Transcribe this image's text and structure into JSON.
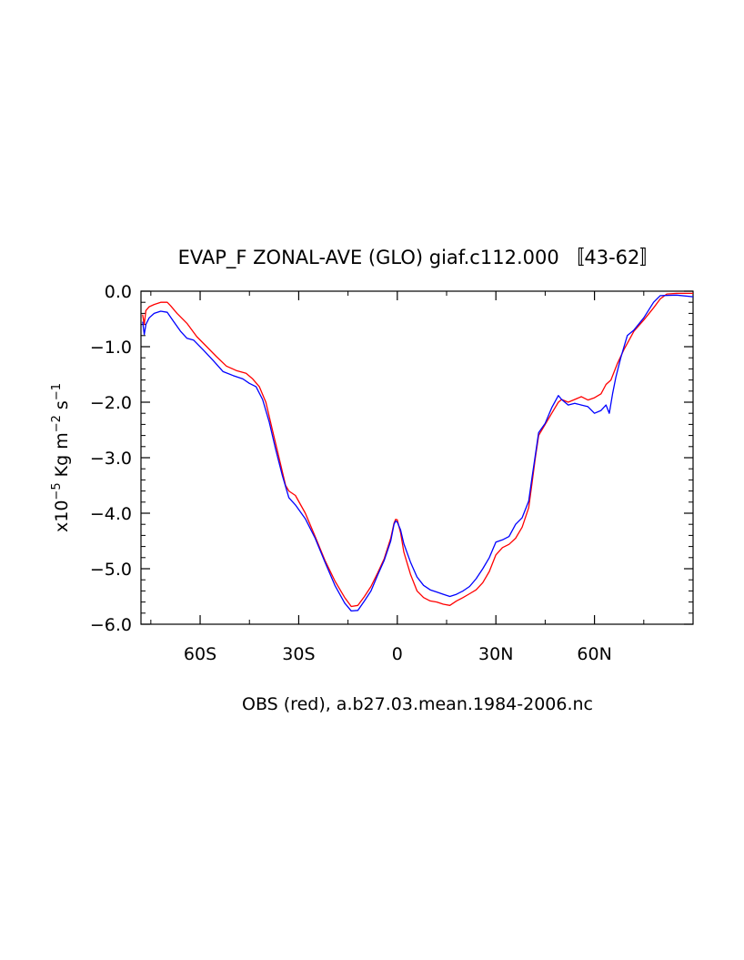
{
  "chart_data": {
    "type": "line",
    "title": "EVAP_F ZONAL-AVE (GLO) giaf.c112.000 〚43-62〛",
    "footer": "OBS (red), a.b27.03.mean.1984-2006.nc",
    "ylabel": {
      "prefix": "x10",
      "exp1": "−5",
      "mid": " Kg m",
      "exp2": "−2",
      "mid2": " s",
      "exp3": "−1"
    },
    "xlim": [
      -78,
      90
    ],
    "ylim": [
      -6.0,
      0.0
    ],
    "grid": false,
    "x_ticks": [
      {
        "value": -60,
        "label": "60S"
      },
      {
        "value": -30,
        "label": "30S"
      },
      {
        "value": 0,
        "label": "0"
      },
      {
        "value": 30,
        "label": "30N"
      },
      {
        "value": 60,
        "label": "60N"
      }
    ],
    "y_ticks": [
      {
        "value": 0.0,
        "label": "0.0"
      },
      {
        "value": -1.0,
        "label": "−1.0"
      },
      {
        "value": -2.0,
        "label": "−2.0"
      },
      {
        "value": -3.0,
        "label": "−3.0"
      },
      {
        "value": -4.0,
        "label": "−4.0"
      },
      {
        "value": -5.0,
        "label": "−5.0"
      },
      {
        "value": -6.0,
        "label": "−6.0"
      }
    ],
    "series": [
      {
        "color": "#ff0000",
        "points": [
          [
            -77.5,
            -0.42
          ],
          [
            -77,
            -0.6
          ],
          [
            -76.5,
            -0.35
          ],
          [
            -75.5,
            -0.28
          ],
          [
            -74,
            -0.24
          ],
          [
            -72,
            -0.2
          ],
          [
            -70,
            -0.2
          ],
          [
            -69,
            -0.26
          ],
          [
            -67,
            -0.4
          ],
          [
            -64,
            -0.58
          ],
          [
            -61,
            -0.82
          ],
          [
            -58,
            -1.0
          ],
          [
            -55,
            -1.18
          ],
          [
            -52,
            -1.35
          ],
          [
            -49,
            -1.43
          ],
          [
            -46,
            -1.48
          ],
          [
            -44,
            -1.58
          ],
          [
            -42,
            -1.72
          ],
          [
            -40,
            -2.0
          ],
          [
            -38,
            -2.5
          ],
          [
            -36,
            -3.0
          ],
          [
            -34,
            -3.5
          ],
          [
            -33,
            -3.6
          ],
          [
            -31,
            -3.68
          ],
          [
            -28,
            -4.0
          ],
          [
            -25,
            -4.42
          ],
          [
            -22,
            -4.85
          ],
          [
            -19,
            -5.22
          ],
          [
            -16,
            -5.52
          ],
          [
            -14,
            -5.68
          ],
          [
            -12,
            -5.66
          ],
          [
            -10,
            -5.5
          ],
          [
            -8,
            -5.32
          ],
          [
            -6,
            -5.08
          ],
          [
            -4,
            -4.82
          ],
          [
            -2,
            -4.45
          ],
          [
            -1,
            -4.18
          ],
          [
            -0.5,
            -4.11
          ],
          [
            0,
            -4.12
          ],
          [
            1,
            -4.35
          ],
          [
            2,
            -4.7
          ],
          [
            4,
            -5.1
          ],
          [
            6,
            -5.4
          ],
          [
            8,
            -5.52
          ],
          [
            10,
            -5.58
          ],
          [
            12,
            -5.6
          ],
          [
            14,
            -5.64
          ],
          [
            16,
            -5.66
          ],
          [
            18,
            -5.58
          ],
          [
            20,
            -5.52
          ],
          [
            22,
            -5.45
          ],
          [
            24,
            -5.38
          ],
          [
            26,
            -5.25
          ],
          [
            28,
            -5.05
          ],
          [
            30,
            -4.75
          ],
          [
            32,
            -4.62
          ],
          [
            34,
            -4.56
          ],
          [
            36,
            -4.45
          ],
          [
            38,
            -4.25
          ],
          [
            40,
            -3.9
          ],
          [
            41,
            -3.45
          ],
          [
            42,
            -3.0
          ],
          [
            43,
            -2.6
          ],
          [
            45,
            -2.4
          ],
          [
            47,
            -2.2
          ],
          [
            49,
            -2.0
          ],
          [
            50,
            -1.95
          ],
          [
            52,
            -2.0
          ],
          [
            54,
            -1.95
          ],
          [
            56,
            -1.9
          ],
          [
            58,
            -1.96
          ],
          [
            60,
            -1.92
          ],
          [
            62,
            -1.85
          ],
          [
            63.5,
            -1.68
          ],
          [
            65,
            -1.6
          ],
          [
            67,
            -1.3
          ],
          [
            69,
            -1.05
          ],
          [
            72,
            -0.72
          ],
          [
            75,
            -0.52
          ],
          [
            78,
            -0.3
          ],
          [
            80,
            -0.14
          ],
          [
            82,
            -0.05
          ],
          [
            85,
            -0.04
          ],
          [
            90,
            -0.04
          ]
        ]
      },
      {
        "color": "#0000ff",
        "points": [
          [
            -77.5,
            -0.55
          ],
          [
            -77,
            -0.78
          ],
          [
            -76.5,
            -0.6
          ],
          [
            -75.5,
            -0.48
          ],
          [
            -74,
            -0.4
          ],
          [
            -72,
            -0.36
          ],
          [
            -70,
            -0.38
          ],
          [
            -68,
            -0.55
          ],
          [
            -66,
            -0.72
          ],
          [
            -64,
            -0.85
          ],
          [
            -62,
            -0.88
          ],
          [
            -59,
            -1.06
          ],
          [
            -56,
            -1.25
          ],
          [
            -53,
            -1.45
          ],
          [
            -50,
            -1.52
          ],
          [
            -47,
            -1.58
          ],
          [
            -45,
            -1.66
          ],
          [
            -43,
            -1.72
          ],
          [
            -41,
            -1.95
          ],
          [
            -39,
            -2.35
          ],
          [
            -37,
            -2.85
          ],
          [
            -35,
            -3.32
          ],
          [
            -33,
            -3.72
          ],
          [
            -31,
            -3.85
          ],
          [
            -28,
            -4.1
          ],
          [
            -25,
            -4.45
          ],
          [
            -22,
            -4.88
          ],
          [
            -19,
            -5.3
          ],
          [
            -16,
            -5.62
          ],
          [
            -14,
            -5.76
          ],
          [
            -12,
            -5.75
          ],
          [
            -10,
            -5.58
          ],
          [
            -8,
            -5.4
          ],
          [
            -6,
            -5.12
          ],
          [
            -4,
            -4.85
          ],
          [
            -2,
            -4.5
          ],
          [
            -1,
            -4.2
          ],
          [
            -0.5,
            -4.14
          ],
          [
            0,
            -4.16
          ],
          [
            1,
            -4.3
          ],
          [
            2,
            -4.55
          ],
          [
            4,
            -4.88
          ],
          [
            6,
            -5.15
          ],
          [
            8,
            -5.3
          ],
          [
            10,
            -5.38
          ],
          [
            12,
            -5.42
          ],
          [
            14,
            -5.46
          ],
          [
            16,
            -5.5
          ],
          [
            18,
            -5.46
          ],
          [
            20,
            -5.4
          ],
          [
            22,
            -5.32
          ],
          [
            24,
            -5.18
          ],
          [
            26,
            -5.0
          ],
          [
            28,
            -4.8
          ],
          [
            30,
            -4.52
          ],
          [
            32,
            -4.48
          ],
          [
            34,
            -4.42
          ],
          [
            36,
            -4.2
          ],
          [
            38,
            -4.08
          ],
          [
            40,
            -3.78
          ],
          [
            41,
            -3.35
          ],
          [
            42,
            -2.95
          ],
          [
            43,
            -2.55
          ],
          [
            45,
            -2.38
          ],
          [
            47,
            -2.1
          ],
          [
            49,
            -1.88
          ],
          [
            50,
            -1.95
          ],
          [
            52,
            -2.05
          ],
          [
            54,
            -2.02
          ],
          [
            56,
            -2.05
          ],
          [
            58,
            -2.08
          ],
          [
            60,
            -2.2
          ],
          [
            62,
            -2.15
          ],
          [
            63.5,
            -2.05
          ],
          [
            64.5,
            -2.2
          ],
          [
            65.5,
            -1.85
          ],
          [
            66.5,
            -1.55
          ],
          [
            68,
            -1.2
          ],
          [
            70,
            -0.8
          ],
          [
            72,
            -0.7
          ],
          [
            75,
            -0.48
          ],
          [
            78,
            -0.2
          ],
          [
            80,
            -0.08
          ],
          [
            85,
            -0.07
          ],
          [
            90,
            -0.1
          ]
        ]
      }
    ]
  }
}
